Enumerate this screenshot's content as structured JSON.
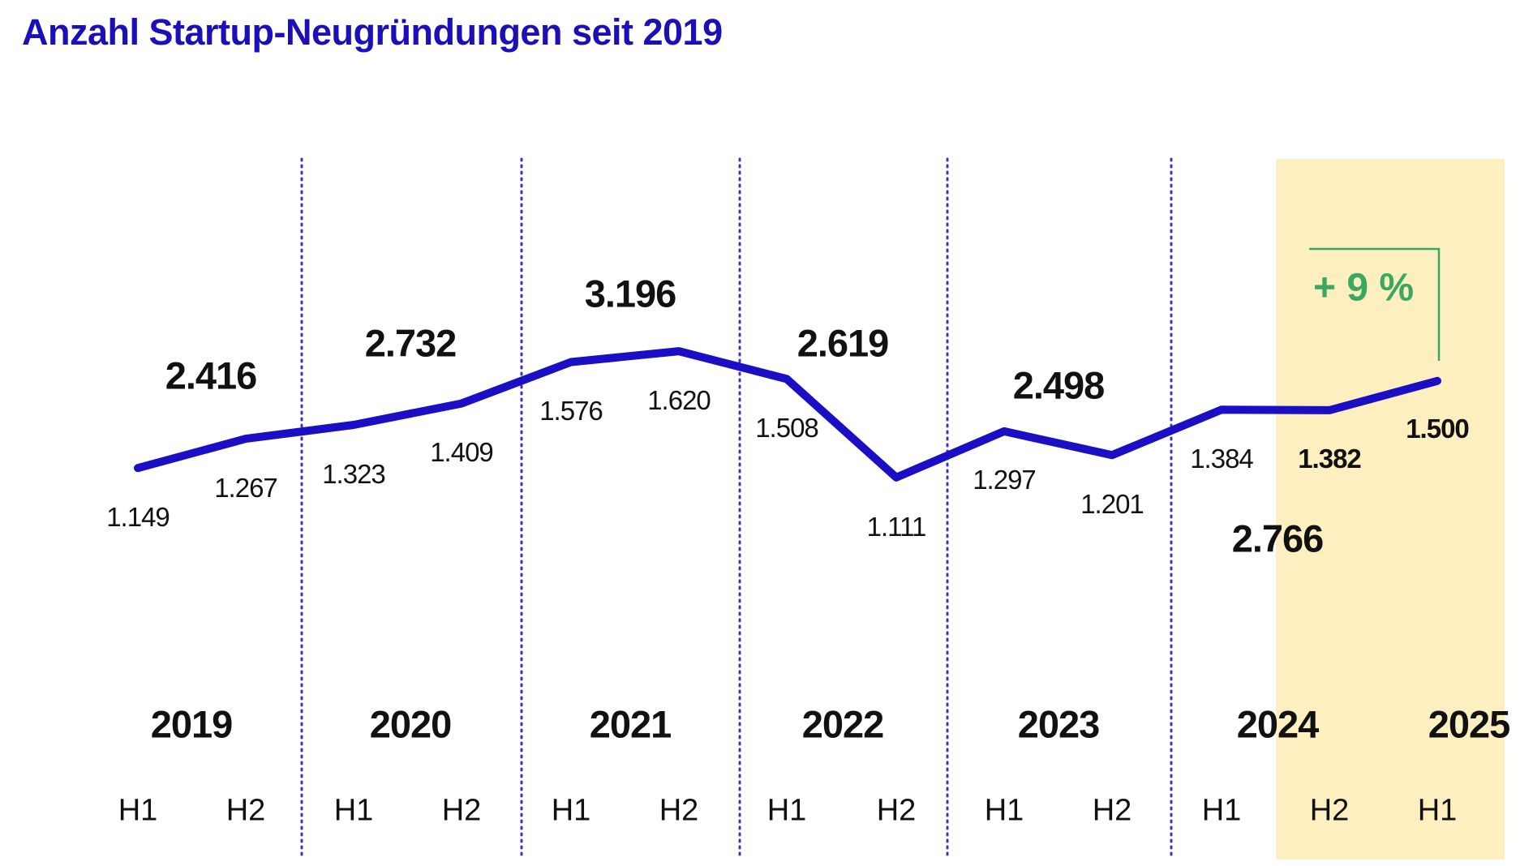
{
  "title": "Anzahl Startup-Neugründungen seit 2019",
  "colors": {
    "line": "#1a0fc4",
    "title": "#1a0fb8",
    "highlight": "#fdefc0",
    "growth": "#3aa860",
    "divider": "#3b2fd6"
  },
  "chart_data": {
    "type": "line",
    "title": "Anzahl Startup-Neugründungen seit 2019",
    "x": [
      "2019 H1",
      "2019 H2",
      "2020 H1",
      "2020 H2",
      "2021 H1",
      "2021 H2",
      "2022 H1",
      "2022 H2",
      "2023 H1",
      "2023 H2",
      "2024 H1",
      "2024 H2",
      "2025 H1"
    ],
    "half_labels": [
      "H1",
      "H2",
      "H1",
      "H2",
      "H1",
      "H2",
      "H1",
      "H2",
      "H1",
      "H2",
      "H1",
      "H2",
      "H1"
    ],
    "values": [
      1149,
      1267,
      1323,
      1409,
      1576,
      1620,
      1508,
      1111,
      1297,
      1201,
      1384,
      1382,
      1500
    ],
    "value_labels": [
      "1.149",
      "1.267",
      "1.323",
      "1.409",
      "1.576",
      "1.620",
      "1.508",
      "1.111",
      "1.297",
      "1.201",
      "1.384",
      "1.382",
      "1.500"
    ],
    "years": [
      "2019",
      "2020",
      "2021",
      "2022",
      "2023",
      "2024",
      "2025"
    ],
    "year_totals": [
      "2.416",
      "2.732",
      "3.196",
      "2.619",
      "2.498",
      "2.766"
    ],
    "year_total_values": [
      2416,
      2732,
      3196,
      2619,
      2498,
      2766
    ],
    "annotation": "+ 9 %",
    "highlight_range": [
      "2024 H2",
      "2025 H1"
    ],
    "ylim": [
      800,
      1800
    ],
    "grid": false,
    "xlabel": "",
    "ylabel": ""
  }
}
